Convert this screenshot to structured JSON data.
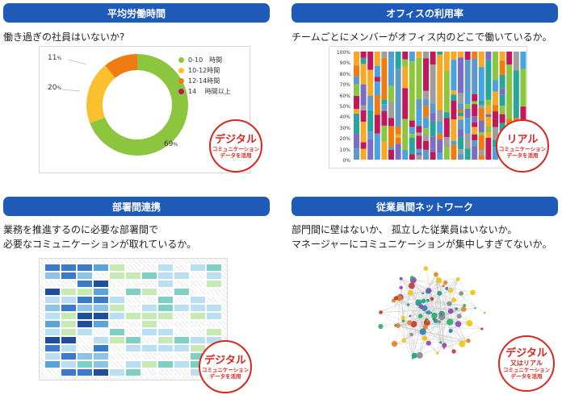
{
  "q1": {
    "header": "平均労働時間",
    "desc": "働き過ぎの社員はいないか?",
    "legend": [
      {
        "label": "0-10　時間",
        "color": "#8cc63f"
      },
      {
        "label": "10-12時間",
        "color": "#fbc02d"
      },
      {
        "label": "12-14時間",
        "color": "#ef7c13"
      },
      {
        "label": "14　 時間以上",
        "color": "#b5175e"
      }
    ],
    "pct_11": "11",
    "pct_20": "20",
    "pct_69": "69",
    "pct_unit": "%",
    "badge_main": "デジタル",
    "badge_sub1": "コミュニケーション",
    "badge_sub2": "データを活用"
  },
  "q2": {
    "header": "オフィスの利用率",
    "desc": "チームごとにメンバーがオフィス内のどこで働いているか。",
    "yticks": [
      "100%",
      "90%",
      "80%",
      "70%",
      "60%",
      "50%",
      "40%",
      "30%",
      "20%",
      "10%",
      "0%"
    ],
    "badge_main": "リアル",
    "badge_sub1": "コミュニケーション",
    "badge_sub2": "データを活用"
  },
  "q3": {
    "header": "部署間連携",
    "desc1": "業務を推進するのに必要な部署間で",
    "desc2": "必要なコミュニケーションが取れているか。",
    "badge_main": "デジタル",
    "badge_sub1": "コミュニケーション",
    "badge_sub2": "データを活用"
  },
  "q4": {
    "header": "従業員間ネットワーク",
    "desc1": "部門間に壁はないか、 孤立した従業員はいないか。",
    "desc2": "マネージャーにコミュニケーションが集中しすぎてないか。",
    "badge_main": "デジタル",
    "badge_mid": "又はリアル",
    "badge_sub1": "コミュニケーション",
    "badge_sub2": "データを活用"
  },
  "colors": {
    "header_bg": "#1e5bb8",
    "badge_red": "#d8281e",
    "donut_green": "#8cc63f",
    "donut_yellow": "#fbc02d",
    "donut_orange": "#ef7c13"
  }
}
